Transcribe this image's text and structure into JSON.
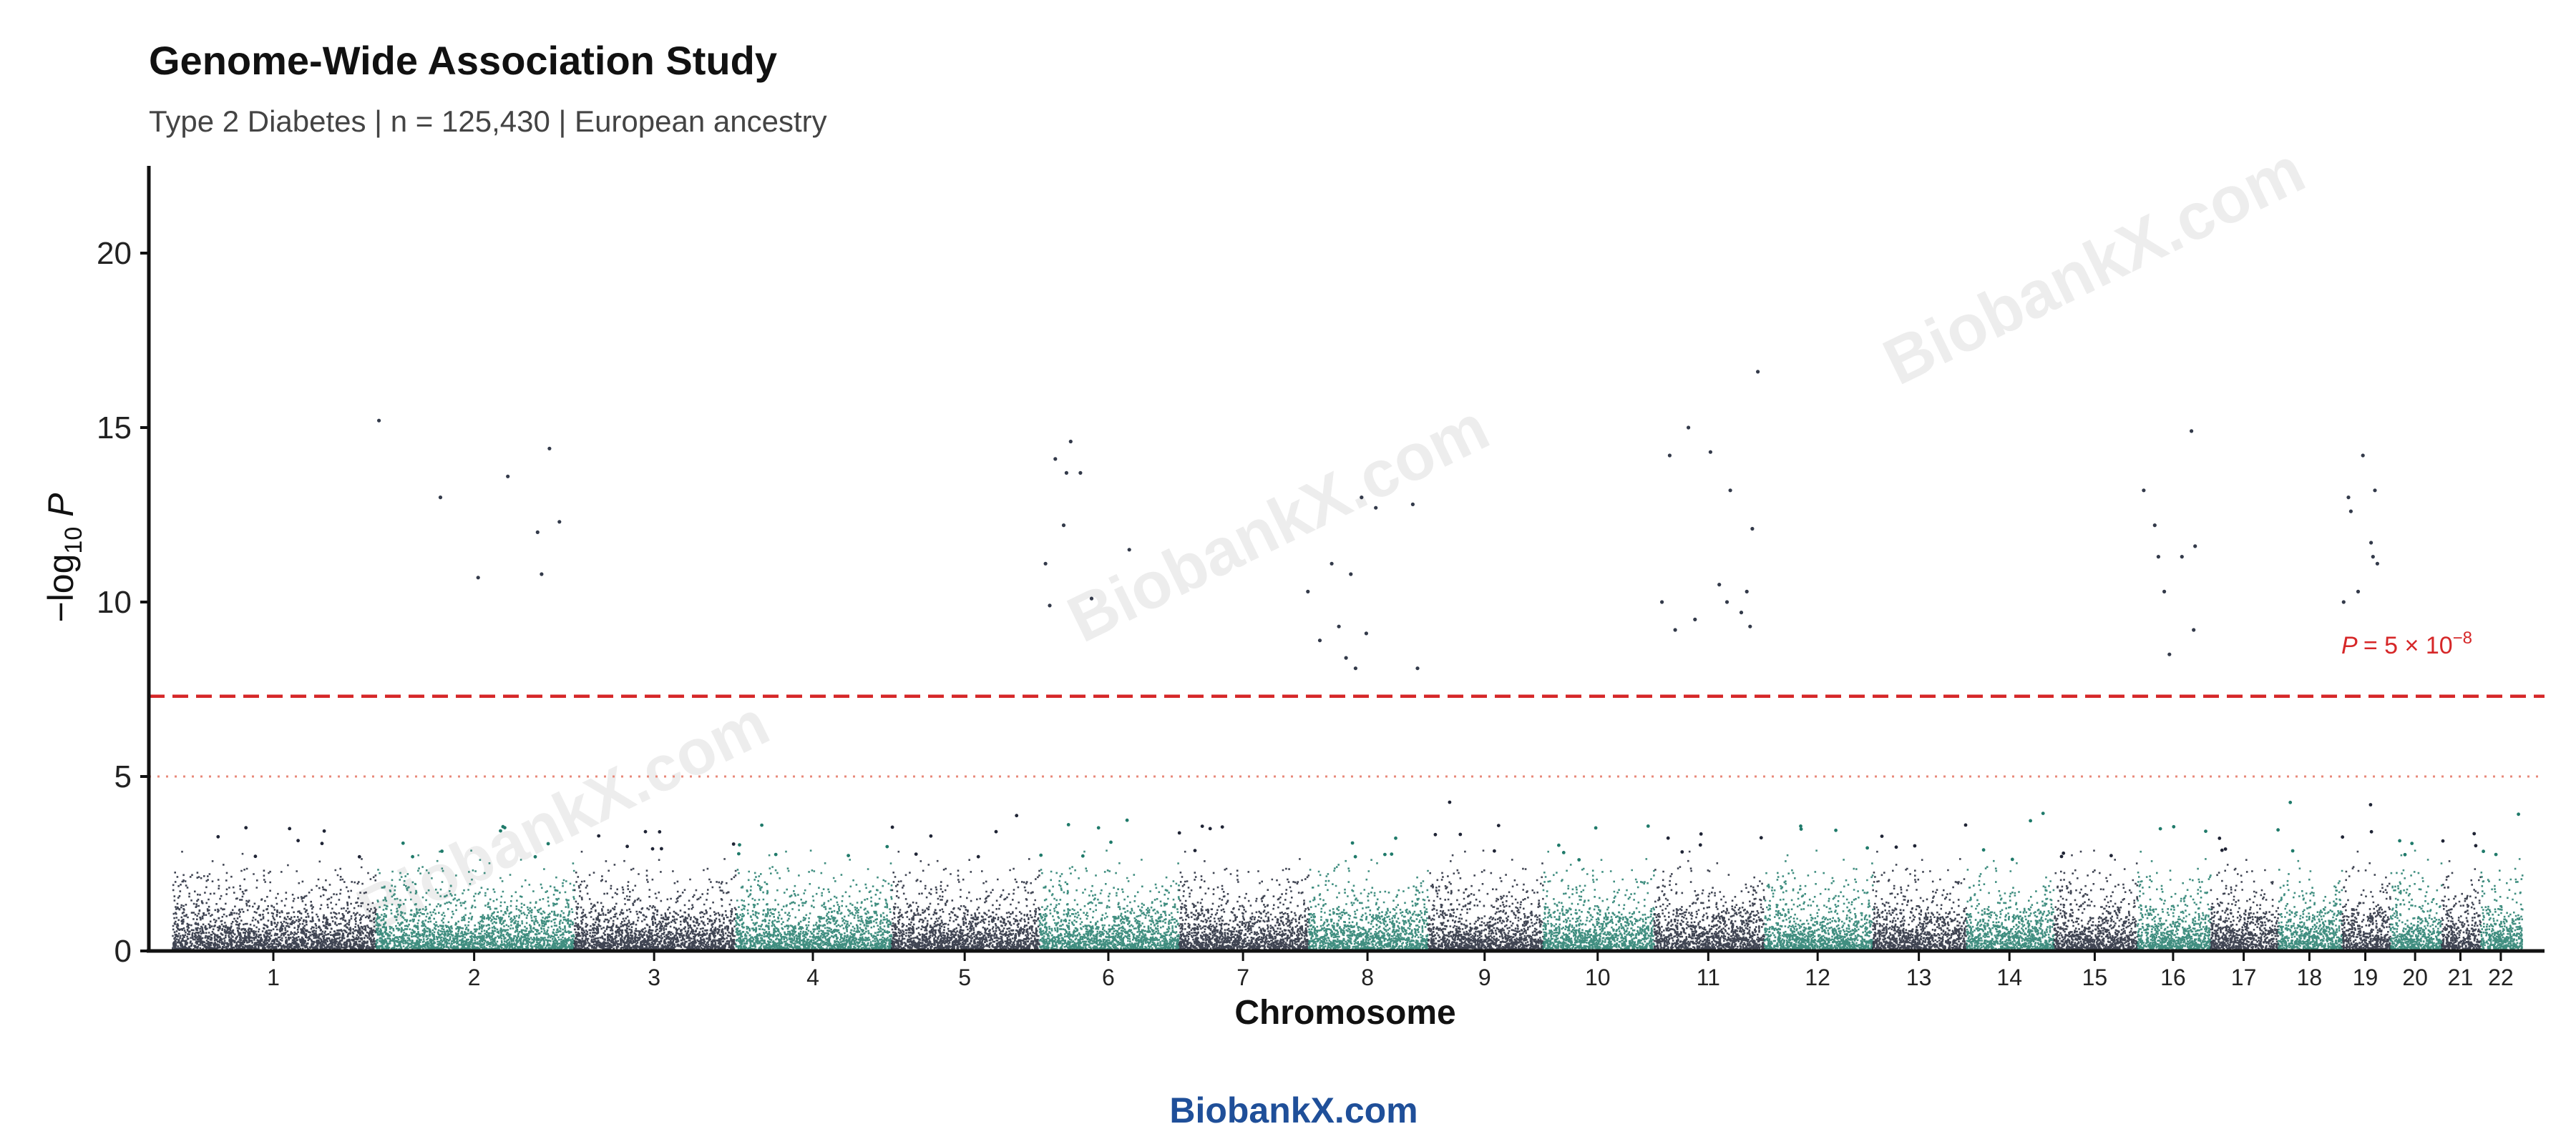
{
  "chart_data": {
    "type": "scatter",
    "variant": "manhattan",
    "title": "Genome-Wide Association Study",
    "subtitle": "Type 2 Diabetes | n = 125,430 | European ancestry",
    "xlabel": "Chromosome",
    "ylabel": "−log10 P",
    "ylim": [
      0,
      22.5
    ],
    "yticks": [
      0,
      5,
      10,
      15,
      20
    ],
    "grid": false,
    "chromosomes": [
      "1",
      "2",
      "3",
      "4",
      "5",
      "6",
      "7",
      "8",
      "9",
      "10",
      "11",
      "12",
      "13",
      "14",
      "15",
      "16",
      "17",
      "18",
      "19",
      "20",
      "21",
      "22"
    ],
    "chromosome_colors": [
      "#1f2435",
      "#1f7a6a"
    ],
    "background": {
      "description": "dense cloud of sub-threshold SNPs per chromosome",
      "typical_max": 2.5,
      "max": 4.3
    },
    "thresholds": [
      {
        "name": "genome-wide significance",
        "value": 7.3,
        "style": "dashed",
        "color": "#d62728",
        "label": "P = 5 × 10⁻⁸"
      },
      {
        "name": "suggestive",
        "value": 5.0,
        "style": "dotted",
        "color": "#e8897a"
      }
    ],
    "significant_peaks": [
      {
        "chromosome": "2",
        "points": [
          [
            0.02,
            15.2
          ],
          [
            0.33,
            13.0
          ],
          [
            0.52,
            10.7
          ],
          [
            0.67,
            13.6
          ],
          [
            0.82,
            12.0
          ],
          [
            0.88,
            14.4
          ],
          [
            0.84,
            10.8
          ],
          [
            0.93,
            12.3
          ]
        ]
      },
      {
        "chromosome": "6",
        "points": [
          [
            0.05,
            11.1
          ],
          [
            0.08,
            9.9
          ],
          [
            0.12,
            14.1
          ],
          [
            0.18,
            12.2
          ],
          [
            0.2,
            13.7
          ],
          [
            0.23,
            14.6
          ],
          [
            0.3,
            13.7
          ],
          [
            0.38,
            10.1
          ],
          [
            0.65,
            11.5
          ]
        ]
      },
      {
        "chromosome": "8",
        "points": [
          [
            0.0,
            10.3
          ],
          [
            0.1,
            8.9
          ],
          [
            0.2,
            11.1
          ],
          [
            0.26,
            9.3
          ],
          [
            0.32,
            8.4
          ],
          [
            0.36,
            10.8
          ],
          [
            0.4,
            8.1
          ],
          [
            0.45,
            13.0
          ],
          [
            0.49,
            9.1
          ],
          [
            0.57,
            12.7
          ],
          [
            0.88,
            12.8
          ],
          [
            0.92,
            8.1
          ]
        ]
      },
      {
        "chromosome": "11",
        "points": [
          [
            0.08,
            10.0
          ],
          [
            0.15,
            14.2
          ],
          [
            0.2,
            9.2
          ],
          [
            0.32,
            15.0
          ],
          [
            0.38,
            9.5
          ],
          [
            0.52,
            14.3
          ],
          [
            0.6,
            10.5
          ],
          [
            0.67,
            10.0
          ],
          [
            0.7,
            13.2
          ],
          [
            0.8,
            9.7
          ],
          [
            0.85,
            10.3
          ],
          [
            0.9,
            12.1
          ],
          [
            0.88,
            9.3
          ],
          [
            0.95,
            16.6
          ]
        ]
      },
      {
        "chromosome": "16",
        "points": [
          [
            0.1,
            13.2
          ],
          [
            0.25,
            12.2
          ],
          [
            0.3,
            11.3
          ],
          [
            0.38,
            10.3
          ],
          [
            0.45,
            8.5
          ],
          [
            0.62,
            11.3
          ],
          [
            0.75,
            14.9
          ],
          [
            0.8,
            11.6
          ],
          [
            0.78,
            9.2
          ]
        ]
      },
      {
        "chromosome": "19",
        "points": [
          [
            0.05,
            10.0
          ],
          [
            0.15,
            13.0
          ],
          [
            0.2,
            12.6
          ],
          [
            0.35,
            10.3
          ],
          [
            0.45,
            14.2
          ],
          [
            0.62,
            11.7
          ],
          [
            0.66,
            11.3
          ],
          [
            0.7,
            13.2
          ],
          [
            0.75,
            11.1
          ]
        ]
      }
    ]
  },
  "watermark": {
    "text": "BiobankX.com",
    "color": "#1f4f99"
  }
}
